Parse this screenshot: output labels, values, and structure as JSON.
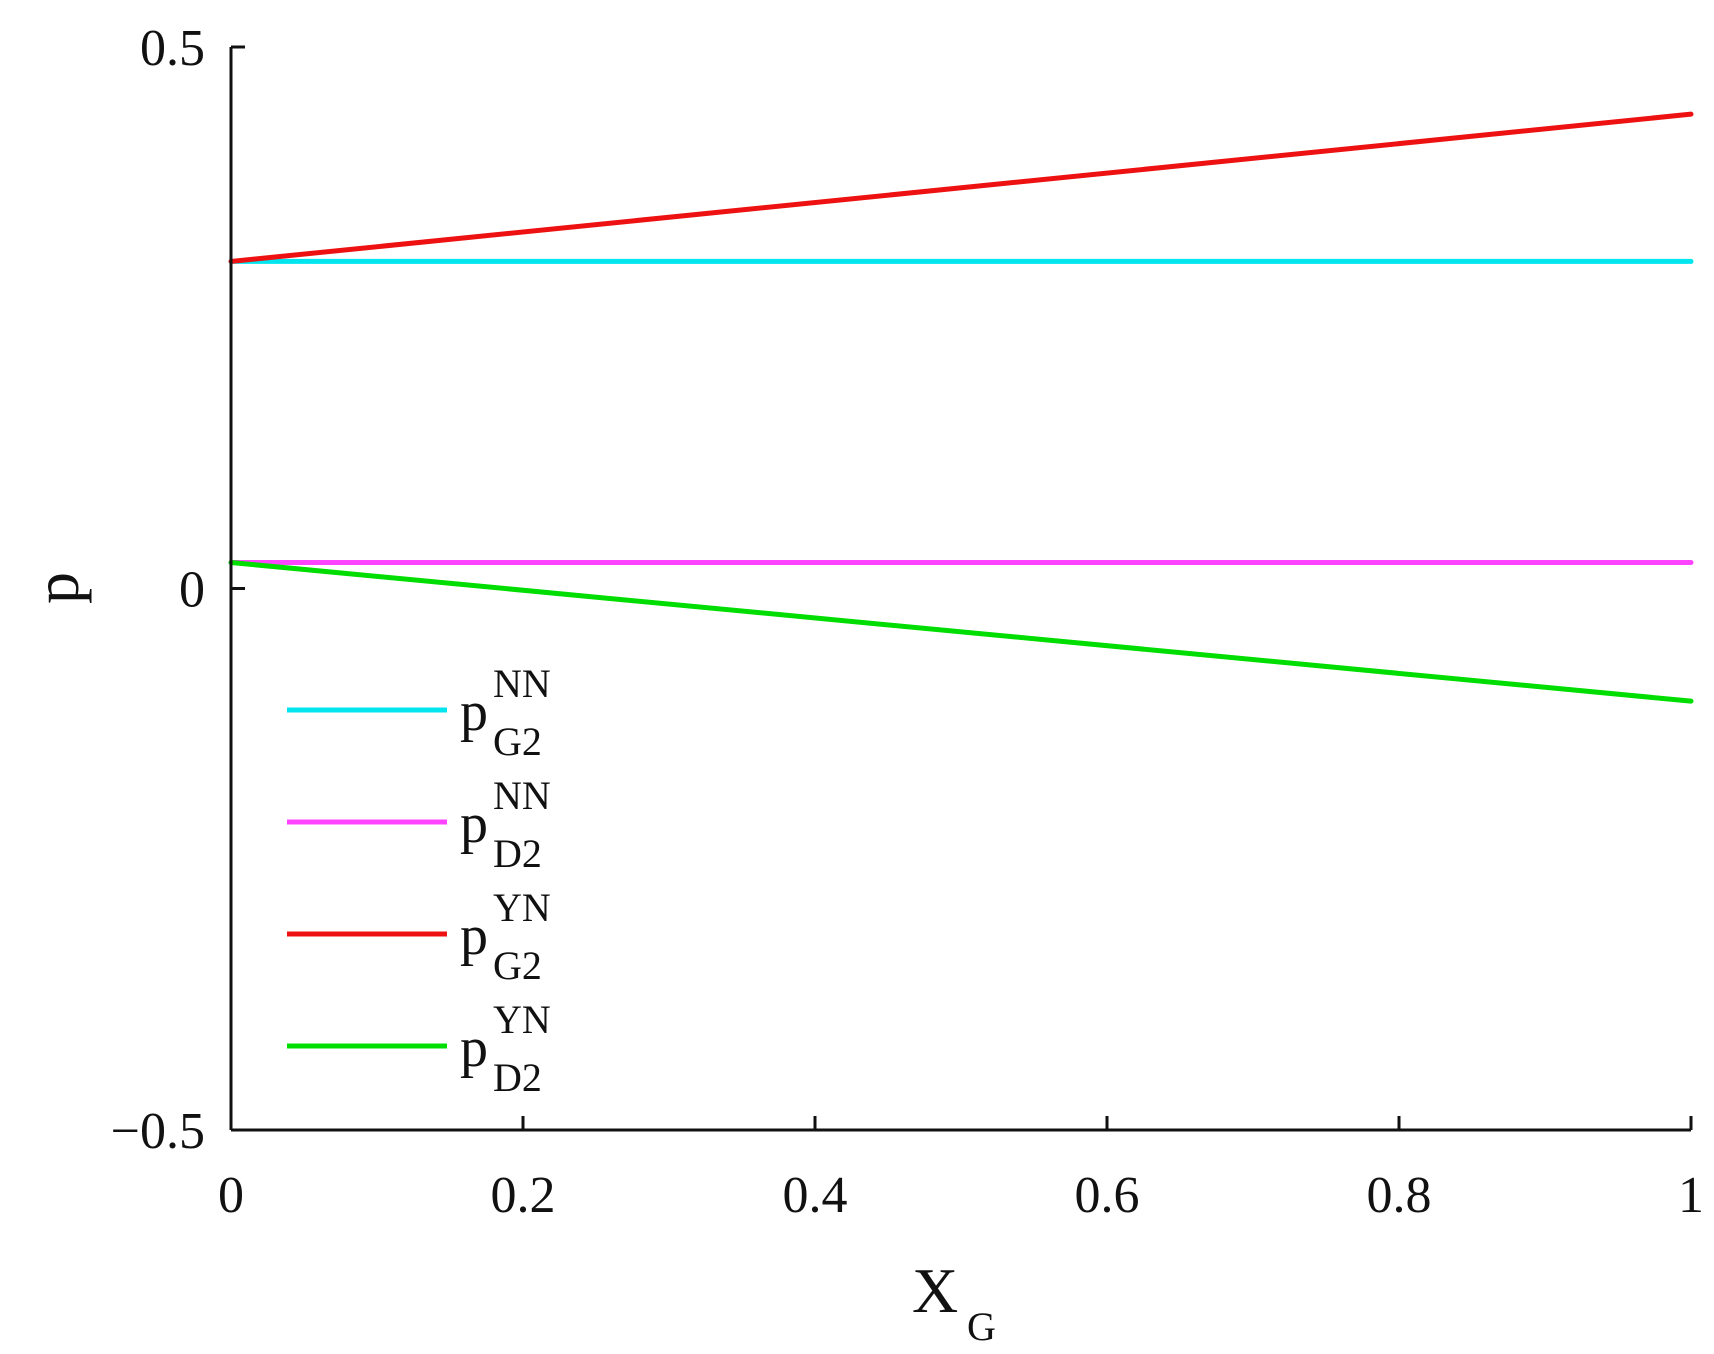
{
  "chart_data": {
    "type": "line",
    "title": "",
    "xlabel": {
      "main": "X",
      "sub": "G"
    },
    "ylabel": "p",
    "xlim": [
      0,
      1
    ],
    "ylim": [
      -0.5,
      0.5
    ],
    "xticks": [
      0,
      0.2,
      0.4,
      0.6,
      0.8,
      1
    ],
    "xtick_labels": [
      "0",
      "0.2",
      "0.4",
      "0.6",
      "0.8",
      "1"
    ],
    "yticks": [
      -0.5,
      0,
      0.5
    ],
    "ytick_labels": [
      "−0.5",
      "0",
      "0.5"
    ],
    "grid": false,
    "legend_position": "lower-left",
    "series": [
      {
        "id": "pG2NN",
        "main": "p",
        "sup": "NN",
        "sub": "G2",
        "color": "#00e5ee",
        "x": [
          0,
          1
        ],
        "y": [
          0.302,
          0.302
        ]
      },
      {
        "id": "pD2NN",
        "main": "p",
        "sup": "NN",
        "sub": "D2",
        "color": "#ff44ff",
        "x": [
          0,
          1
        ],
        "y": [
          0.024,
          0.024
        ]
      },
      {
        "id": "pG2YN",
        "main": "p",
        "sup": "YN",
        "sub": "G2",
        "color": "#ee1111",
        "x": [
          0,
          1
        ],
        "y": [
          0.302,
          0.438
        ]
      },
      {
        "id": "pD2YN",
        "main": "p",
        "sup": "YN",
        "sub": "D2",
        "color": "#00dd00",
        "x": [
          0,
          1
        ],
        "y": [
          0.024,
          -0.104
        ]
      }
    ]
  }
}
